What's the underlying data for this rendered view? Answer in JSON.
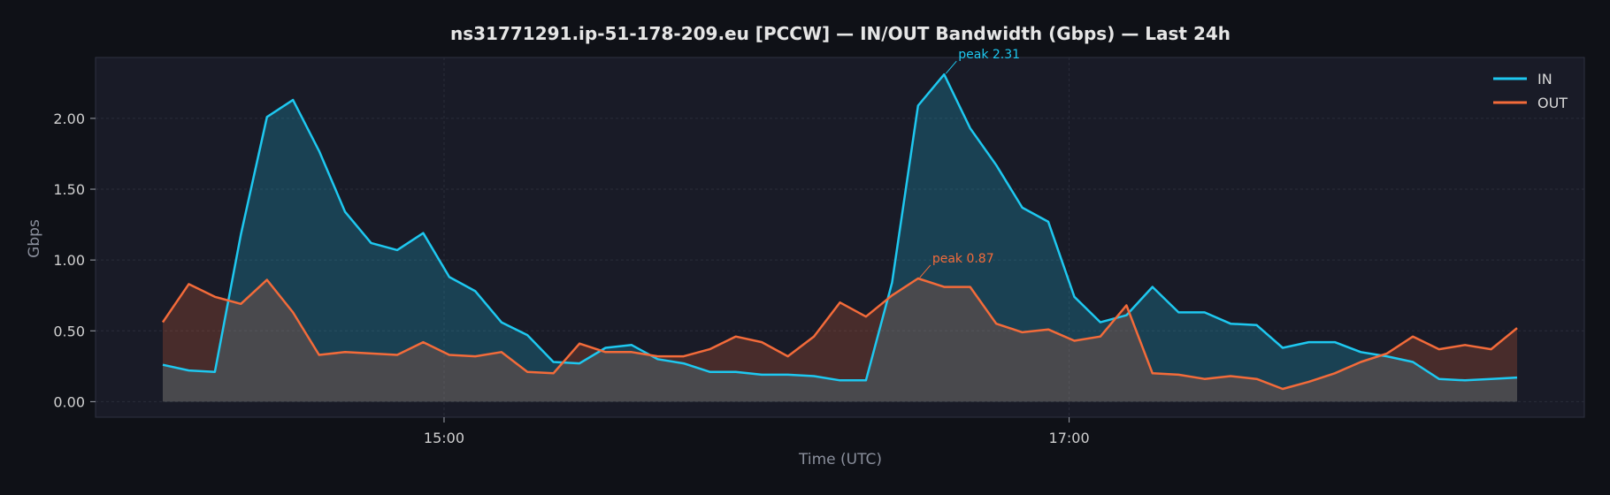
{
  "chart_data": {
    "type": "line",
    "title": "ns31771291.ip-51-178-209.eu [PCCW] — IN/OUT Bandwidth (Gbps) — Last 24h",
    "xlabel": "Time (UTC)",
    "ylabel": "Gbps",
    "x_start": "14:06",
    "x_interval_minutes": 5,
    "x_tick_values": [
      "15:00",
      "17:00"
    ],
    "x_ticks": [
      "15:00",
      "17:00"
    ],
    "ylim": [
      -0.11,
      2.43
    ],
    "y_ticks": [
      "0.00",
      "0.50",
      "1.00",
      "1.50",
      "2.00"
    ],
    "y_tick_values": [
      0,
      0.5,
      1.0,
      1.5,
      2.0
    ],
    "grid": true,
    "legend": "top-right",
    "series": [
      {
        "name": "IN",
        "color": "#1ec8f0",
        "values": [
          0.26,
          0.22,
          0.21,
          1.18,
          2.01,
          2.13,
          1.77,
          1.34,
          1.12,
          1.07,
          1.19,
          0.88,
          0.78,
          0.56,
          0.47,
          0.28,
          0.27,
          0.38,
          0.4,
          0.3,
          0.27,
          0.21,
          0.21,
          0.19,
          0.19,
          0.18,
          0.15,
          0.15,
          0.84,
          2.09,
          2.31,
          1.93,
          1.67,
          1.37,
          1.27,
          0.74,
          0.56,
          0.61,
          0.81,
          0.63,
          0.63,
          0.55,
          0.54,
          0.38,
          0.42,
          0.42,
          0.35,
          0.32,
          0.28,
          0.16,
          0.15,
          0.16,
          0.17
        ]
      },
      {
        "name": "OUT",
        "color": "#f36b3a",
        "values": [
          0.56,
          0.83,
          0.74,
          0.69,
          0.86,
          0.63,
          0.33,
          0.35,
          0.34,
          0.33,
          0.42,
          0.33,
          0.32,
          0.35,
          0.21,
          0.2,
          0.41,
          0.35,
          0.35,
          0.32,
          0.32,
          0.37,
          0.46,
          0.42,
          0.32,
          0.46,
          0.7,
          0.6,
          0.75,
          0.87,
          0.81,
          0.81,
          0.55,
          0.49,
          0.51,
          0.43,
          0.46,
          0.68,
          0.2,
          0.19,
          0.16,
          0.18,
          0.16,
          0.09,
          0.14,
          0.2,
          0.28,
          0.34,
          0.46,
          0.37,
          0.4,
          0.37,
          0.52
        ]
      }
    ],
    "annotations": [
      {
        "text": "peak 2.31",
        "series": "IN",
        "point_index": 30,
        "value": 2.31
      },
      {
        "text": "peak 0.87",
        "series": "OUT",
        "point_index": 29,
        "value": 0.87
      }
    ]
  }
}
